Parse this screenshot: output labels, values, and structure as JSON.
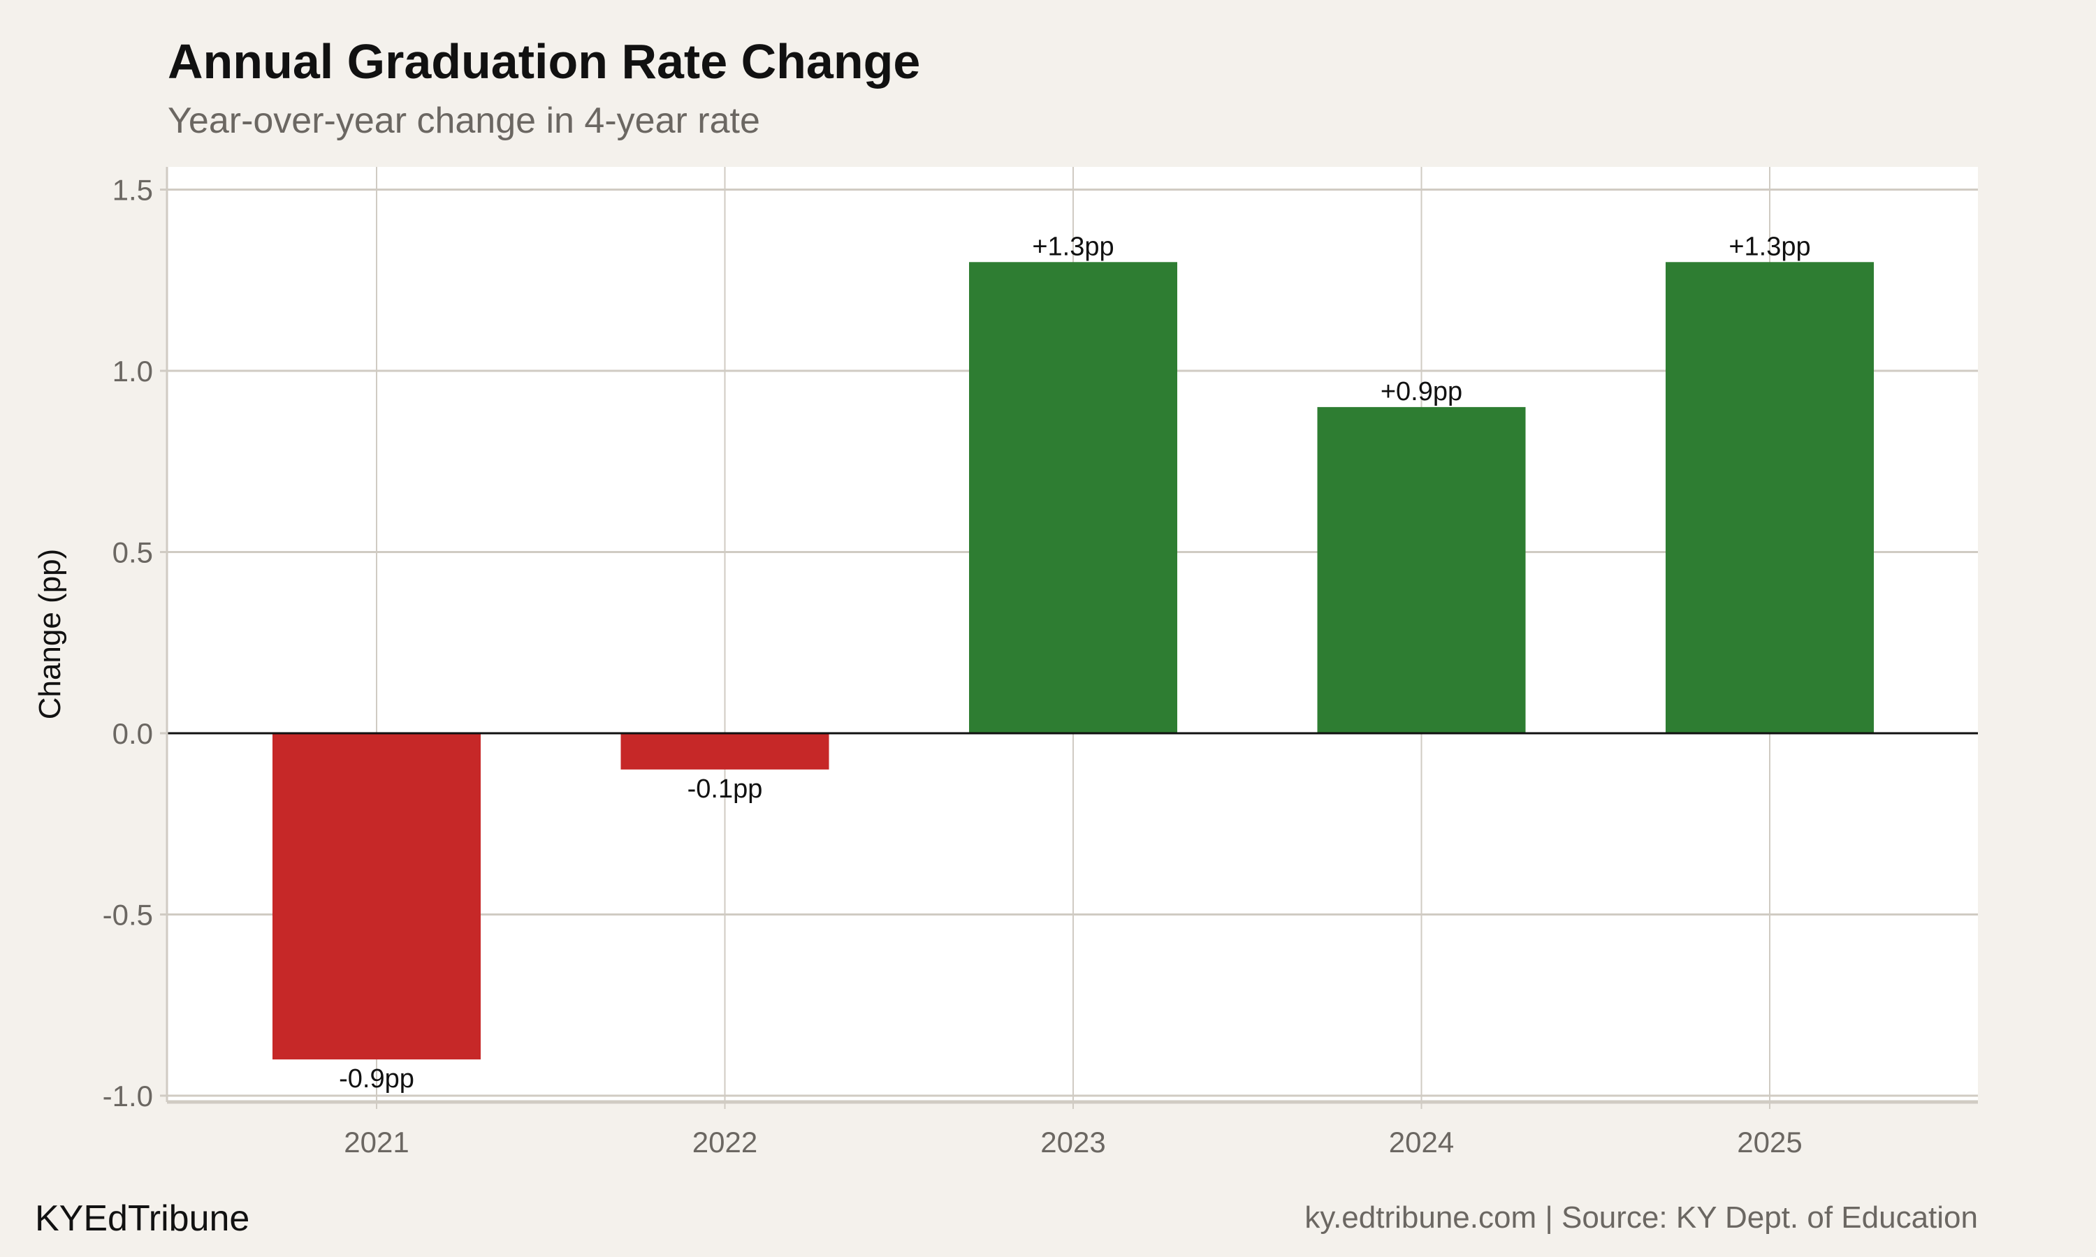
{
  "chart_data": {
    "type": "bar",
    "title": "Annual Graduation Rate Change",
    "subtitle": "Year-over-year change in 4-year rate",
    "xlabel": "",
    "ylabel": "Change (pp)",
    "categories": [
      "2021",
      "2022",
      "2023",
      "2024",
      "2025"
    ],
    "values": [
      -0.9,
      -0.1,
      1.3,
      0.9,
      1.3
    ],
    "data_labels": [
      "-0.9pp",
      "-0.1pp",
      "+1.3pp",
      "+0.9pp",
      "+1.3pp"
    ],
    "ylim": [
      -1.0,
      1.5
    ],
    "yticks": [
      -1.0,
      -0.5,
      0.0,
      0.5,
      1.0,
      1.5
    ],
    "ytick_labels": [
      "-1.0",
      "-0.5",
      "0.0",
      "0.5",
      "1.0",
      "1.5"
    ],
    "grid": true,
    "legend": "none",
    "colors": {
      "positive": "#2e7d32",
      "negative": "#c62828",
      "background": "#f4f1ec",
      "panel": "#ffffff",
      "grid": "#d0cbc3"
    }
  },
  "footer": {
    "brand": "KYEdTribune",
    "source": "ky.edtribune.com | Source: KY Dept. of Education"
  }
}
